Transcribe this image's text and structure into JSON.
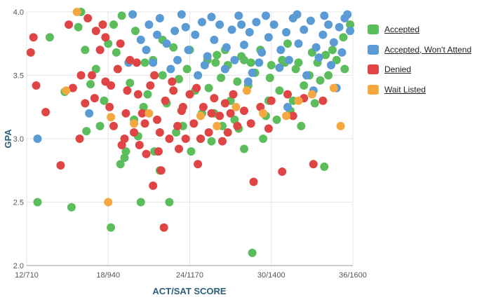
{
  "chart_data": {
    "type": "scatter",
    "xlabel": "ACT/SAT SCORE",
    "ylabel": "GPA",
    "x_ticks": [
      {
        "value": 12,
        "label": "12/710"
      },
      {
        "value": 18,
        "label": "18/940"
      },
      {
        "value": 24,
        "label": "24/1170"
      },
      {
        "value": 30,
        "label": "30/1400"
      },
      {
        "value": 36,
        "label": "36/1600"
      }
    ],
    "y_ticks": [
      {
        "value": 2.0,
        "label": "2.0"
      },
      {
        "value": 2.5,
        "label": "2.5"
      },
      {
        "value": 3.0,
        "label": "3.0"
      },
      {
        "value": 3.5,
        "label": "3.5"
      },
      {
        "value": 4.0,
        "label": "4.0"
      }
    ],
    "xlim": [
      12,
      36
    ],
    "ylim": [
      2.0,
      4.0
    ],
    "grid": true,
    "legend_position": "right",
    "series": [
      {
        "name": "Accepted",
        "color": "#5cbd5c",
        "points": [
          [
            13.7,
            3.8
          ],
          [
            14.8,
            3.37
          ],
          [
            15.8,
            3.88
          ],
          [
            16.3,
            3.7
          ],
          [
            16.4,
            3.06
          ],
          [
            17.1,
            3.55
          ],
          [
            17.7,
            3.3
          ],
          [
            18.2,
            2.3
          ],
          [
            18.6,
            3.68
          ],
          [
            18.9,
            2.8
          ],
          [
            19.3,
            2.9
          ],
          [
            19.9,
            3.15
          ],
          [
            20.4,
            2.5
          ],
          [
            20.9,
            3.35
          ],
          [
            21.4,
            2.9
          ],
          [
            22.0,
            3.5
          ],
          [
            22.5,
            2.5
          ],
          [
            23.5,
            3.1
          ],
          [
            24.1,
            2.9
          ],
          [
            24.9,
            3.2
          ],
          [
            25.4,
            3.4
          ],
          [
            25.9,
            3.6
          ],
          [
            26.4,
            3.1
          ],
          [
            27.0,
            3.3
          ],
          [
            27.5,
            3.45
          ],
          [
            28.0,
            2.92
          ],
          [
            28.5,
            3.6
          ],
          [
            28.6,
            2.1
          ],
          [
            29.2,
            3.7
          ],
          [
            29.8,
            3.3
          ],
          [
            30.4,
            3.15
          ],
          [
            31.0,
            3.6
          ],
          [
            31.6,
            3.3
          ],
          [
            32.2,
            3.1
          ],
          [
            32.8,
            3.5
          ],
          [
            33.4,
            3.6
          ],
          [
            33.9,
            2.78
          ],
          [
            34.5,
            3.7
          ],
          [
            35.3,
            3.8
          ],
          [
            35.8,
            3.9
          ],
          [
            12.8,
            2.5
          ],
          [
            15.3,
            2.46
          ],
          [
            16.7,
            3.43
          ],
          [
            18.0,
            3.75
          ],
          [
            19.0,
            3.97
          ],
          [
            19.6,
            3.44
          ],
          [
            20.2,
            3.02
          ],
          [
            20.7,
            3.6
          ],
          [
            21.3,
            3.62
          ],
          [
            21.8,
            2.75
          ],
          [
            22.3,
            3.28
          ],
          [
            22.8,
            3.72
          ],
          [
            23.2,
            3.47
          ],
          [
            23.8,
            3.55
          ],
          [
            24.4,
            3.38
          ],
          [
            24.8,
            3.0
          ],
          [
            25.3,
            3.62
          ],
          [
            25.8,
            3.2
          ],
          [
            26.3,
            3.48
          ],
          [
            26.8,
            3.58
          ],
          [
            27.3,
            3.15
          ],
          [
            27.8,
            3.65
          ],
          [
            28.3,
            3.42
          ],
          [
            28.8,
            3.52
          ],
          [
            29.4,
            3.0
          ],
          [
            29.9,
            3.48
          ],
          [
            30.6,
            3.38
          ],
          [
            31.2,
            3.75
          ],
          [
            31.8,
            3.55
          ],
          [
            32.4,
            3.42
          ],
          [
            33.0,
            3.68
          ],
          [
            33.6,
            3.46
          ],
          [
            34.2,
            3.5
          ],
          [
            34.8,
            3.62
          ],
          [
            35.4,
            3.55
          ],
          [
            16.0,
            4.0
          ],
          [
            18.4,
            3.9
          ],
          [
            20.0,
            3.85
          ],
          [
            22.0,
            3.78
          ],
          [
            24.0,
            3.7
          ],
          [
            26.0,
            3.66
          ],
          [
            28.0,
            3.62
          ],
          [
            30.0,
            3.58
          ],
          [
            32.0,
            3.6
          ],
          [
            34.0,
            3.66
          ],
          [
            17.4,
            3.1
          ],
          [
            19.2,
            2.85
          ],
          [
            20.6,
            3.25
          ],
          [
            23.0,
            3.05
          ],
          [
            25.6,
            2.98
          ],
          [
            27.6,
            3.08
          ],
          [
            29.6,
            3.18
          ],
          [
            31.4,
            3.22
          ],
          [
            33.2,
            3.28
          ],
          [
            30.8,
            3.62
          ],
          [
            26.6,
            3.7
          ]
        ]
      },
      {
        "name": "Accepted, Won't Attend",
        "color": "#5b9bd5",
        "points": [
          [
            12.8,
            3.0
          ],
          [
            16.6,
            3.2
          ],
          [
            19.5,
            3.6
          ],
          [
            20.4,
            3.78
          ],
          [
            21.0,
            3.9
          ],
          [
            21.3,
            3.6
          ],
          [
            21.8,
            3.95
          ],
          [
            22.3,
            3.75
          ],
          [
            22.9,
            3.85
          ],
          [
            23.4,
            3.98
          ],
          [
            23.9,
            3.7
          ],
          [
            24.4,
            3.82
          ],
          [
            24.9,
            3.92
          ],
          [
            25.3,
            3.65
          ],
          [
            25.8,
            3.78
          ],
          [
            26.2,
            3.9
          ],
          [
            26.7,
            3.72
          ],
          [
            27.1,
            3.86
          ],
          [
            27.6,
            3.97
          ],
          [
            28.0,
            3.74
          ],
          [
            28.4,
            3.84
          ],
          [
            28.9,
            3.92
          ],
          [
            29.3,
            3.68
          ],
          [
            29.8,
            3.8
          ],
          [
            30.2,
            3.9
          ],
          [
            30.7,
            3.7
          ],
          [
            31.1,
            3.84
          ],
          [
            31.6,
            3.95
          ],
          [
            32.0,
            3.75
          ],
          [
            32.4,
            3.86
          ],
          [
            32.9,
            3.93
          ],
          [
            33.3,
            3.72
          ],
          [
            33.8,
            3.82
          ],
          [
            34.2,
            3.9
          ],
          [
            34.6,
            3.76
          ],
          [
            35.0,
            3.88
          ],
          [
            35.4,
            3.95
          ],
          [
            35.8,
            3.85
          ],
          [
            22.6,
            3.55
          ],
          [
            24.6,
            3.5
          ],
          [
            26.6,
            3.55
          ],
          [
            28.6,
            3.52
          ],
          [
            30.6,
            3.56
          ],
          [
            32.6,
            3.5
          ],
          [
            34.4,
            3.58
          ],
          [
            20.8,
            3.7
          ],
          [
            23.1,
            3.62
          ],
          [
            25.1,
            3.58
          ],
          [
            27.3,
            3.62
          ],
          [
            29.1,
            3.6
          ],
          [
            31.3,
            3.62
          ],
          [
            33.5,
            3.64
          ],
          [
            35.2,
            3.68
          ],
          [
            21.6,
            3.82
          ],
          [
            23.7,
            3.88
          ],
          [
            25.6,
            3.96
          ],
          [
            27.8,
            3.9
          ],
          [
            29.6,
            3.97
          ],
          [
            31.9,
            3.98
          ],
          [
            33.9,
            3.97
          ],
          [
            35.6,
            3.98
          ],
          [
            19.8,
            3.98
          ],
          [
            31.2,
            3.25
          ],
          [
            33.1,
            3.38
          ],
          [
            34.8,
            3.4
          ],
          [
            28.3,
            3.45
          ]
        ]
      },
      {
        "name": "Denied",
        "color": "#e04545",
        "points": [
          [
            12.3,
            3.68
          ],
          [
            12.5,
            3.8
          ],
          [
            12.7,
            3.42
          ],
          [
            13.4,
            3.21
          ],
          [
            14.5,
            2.79
          ],
          [
            15.4,
            3.4
          ],
          [
            15.9,
            3.0
          ],
          [
            16.3,
            3.28
          ],
          [
            16.8,
            3.5
          ],
          [
            17.1,
            3.85
          ],
          [
            17.4,
            3.7
          ],
          [
            17.8,
            3.45
          ],
          [
            18.1,
            3.25
          ],
          [
            18.4,
            3.1
          ],
          [
            18.7,
            3.55
          ],
          [
            19.0,
            2.95
          ],
          [
            19.3,
            3.2
          ],
          [
            19.6,
            3.62
          ],
          [
            19.9,
            3.05
          ],
          [
            20.2,
            3.35
          ],
          [
            20.5,
            3.2
          ],
          [
            20.8,
            2.88
          ],
          [
            21.1,
            3.42
          ],
          [
            21.3,
            2.63
          ],
          [
            21.6,
            3.15
          ],
          [
            21.9,
            2.75
          ],
          [
            22.2,
            3.3
          ],
          [
            22.5,
            3.0
          ],
          [
            22.8,
            3.38
          ],
          [
            23.1,
            3.1
          ],
          [
            23.4,
            3.22
          ],
          [
            23.7,
            3.0
          ],
          [
            24.0,
            3.35
          ],
          [
            24.3,
            3.12
          ],
          [
            24.6,
            2.8
          ],
          [
            25.0,
            3.25
          ],
          [
            25.4,
            3.05
          ],
          [
            25.8,
            3.32
          ],
          [
            26.2,
            3.18
          ],
          [
            26.6,
            3.28
          ],
          [
            27.0,
            3.2
          ],
          [
            27.5,
            3.1
          ],
          [
            28.0,
            3.22
          ],
          [
            28.5,
            3.12
          ],
          [
            28.7,
            2.66
          ],
          [
            29.2,
            3.25
          ],
          [
            30.0,
            3.3
          ],
          [
            30.8,
            2.74
          ],
          [
            31.6,
            3.18
          ],
          [
            32.4,
            3.32
          ],
          [
            33.1,
            2.8
          ],
          [
            33.8,
            3.3
          ],
          [
            22.1,
            2.3
          ],
          [
            17.6,
            3.9
          ],
          [
            18.9,
            3.75
          ],
          [
            20.1,
            3.6
          ],
          [
            21.4,
            3.5
          ],
          [
            22.7,
            3.45
          ],
          [
            24.8,
            3.0
          ],
          [
            26.4,
            2.98
          ],
          [
            16.0,
            3.5
          ],
          [
            17.0,
            3.32
          ],
          [
            18.2,
            3.42
          ],
          [
            19.4,
            3.38
          ],
          [
            20.7,
            3.12
          ],
          [
            21.8,
            3.05
          ],
          [
            23.2,
            2.92
          ],
          [
            24.5,
            3.4
          ],
          [
            25.6,
            3.2
          ],
          [
            27.2,
            3.35
          ],
          [
            15.1,
            3.9
          ],
          [
            16.5,
            3.95
          ],
          [
            17.8,
            3.8
          ],
          [
            19.2,
            3.0
          ],
          [
            20.3,
            2.95
          ],
          [
            21.7,
            2.9
          ],
          [
            23.5,
            3.25
          ],
          [
            26.8,
            3.05
          ],
          [
            29.8,
            3.08
          ],
          [
            31.2,
            3.35
          ]
        ]
      },
      {
        "name": "Wait Listed",
        "color": "#f5a742",
        "points": [
          [
            14.9,
            3.38
          ],
          [
            15.7,
            4.0
          ],
          [
            18.0,
            2.5
          ],
          [
            18.2,
            3.17
          ],
          [
            19.9,
            3.12
          ],
          [
            21.0,
            3.2
          ],
          [
            24.8,
            3.18
          ],
          [
            27.4,
            3.25
          ],
          [
            29.4,
            3.2
          ],
          [
            31.1,
            3.18
          ],
          [
            33.0,
            3.35
          ],
          [
            34.6,
            3.4
          ],
          [
            35.1,
            3.1
          ],
          [
            26.0,
            3.1
          ],
          [
            28.2,
            3.38
          ],
          [
            32.0,
            3.3
          ]
        ]
      }
    ]
  }
}
